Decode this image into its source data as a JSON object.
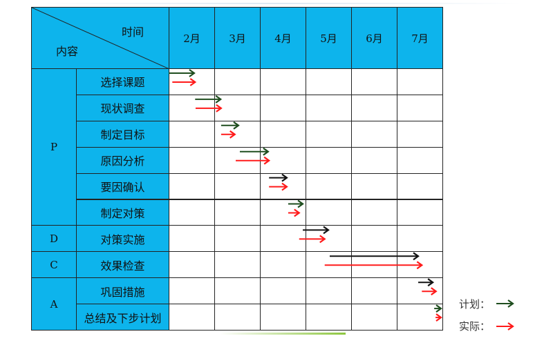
{
  "header": {
    "corner_top": "时间",
    "corner_bottom": "内容"
  },
  "colors": {
    "header_bg": "#0db4ec",
    "plan": "#1e4d1e",
    "plan_alt": "#111111",
    "actual": "#ff1a1a"
  },
  "legend": {
    "plan_label": "计划：",
    "actual_label": "实际："
  },
  "chart_data": {
    "type": "gantt",
    "categories_x": [
      "2月",
      "3月",
      "4月",
      "5月",
      "6月",
      "7月"
    ],
    "x_unit": "month",
    "x_range": [
      2,
      8
    ],
    "phases": [
      {
        "name": "P",
        "tasks": [
          0,
          1,
          2,
          3,
          4,
          5
        ]
      },
      {
        "name": "D",
        "tasks": [
          6
        ]
      },
      {
        "name": "C",
        "tasks": [
          7
        ]
      },
      {
        "name": "A",
        "tasks": [
          8,
          9
        ]
      }
    ],
    "tasks": [
      {
        "name": "选择课题",
        "plan": [
          2.0,
          2.56
        ],
        "actual": [
          2.08,
          2.58
        ],
        "plan_color": "#1e4d1e"
      },
      {
        "name": "现状调查",
        "plan": [
          2.58,
          3.14
        ],
        "actual": [
          2.59,
          3.15
        ],
        "plan_color": "#1e4d1e"
      },
      {
        "name": "制定目标",
        "plan": [
          3.15,
          3.53
        ],
        "actual": [
          3.15,
          3.45
        ],
        "plan_color": "#1e4d1e"
      },
      {
        "name": "原因分析",
        "plan": [
          3.56,
          4.18
        ],
        "actual": [
          3.47,
          4.2
        ],
        "plan_color": "#1e4d1e"
      },
      {
        "name": "要因确认",
        "plan": [
          4.2,
          4.59
        ],
        "actual": [
          4.2,
          4.59
        ],
        "plan_color": "#111111"
      },
      {
        "name": "制定对策",
        "plan": [
          4.62,
          4.94
        ],
        "actual": [
          4.62,
          4.86
        ],
        "plan_color": "#1e4d1e"
      },
      {
        "name": "对策实施",
        "plan": [
          4.94,
          5.5
        ],
        "actual": [
          4.86,
          5.42
        ],
        "plan_color": "#111111"
      },
      {
        "name": "效果检查",
        "plan": [
          5.53,
          7.47
        ],
        "actual": [
          5.42,
          7.55
        ],
        "plan_color": "#111111"
      },
      {
        "name": "巩固措施",
        "plan": [
          7.47,
          7.79
        ],
        "actual": [
          7.55,
          7.86
        ],
        "plan_color": "#111111"
      },
      {
        "name": "总结及下步计划",
        "plan": [
          7.82,
          7.97
        ],
        "actual": [
          7.85,
          7.97
        ],
        "plan_color": "#1e4d1e"
      }
    ],
    "legend_placement": "bottom-right"
  }
}
